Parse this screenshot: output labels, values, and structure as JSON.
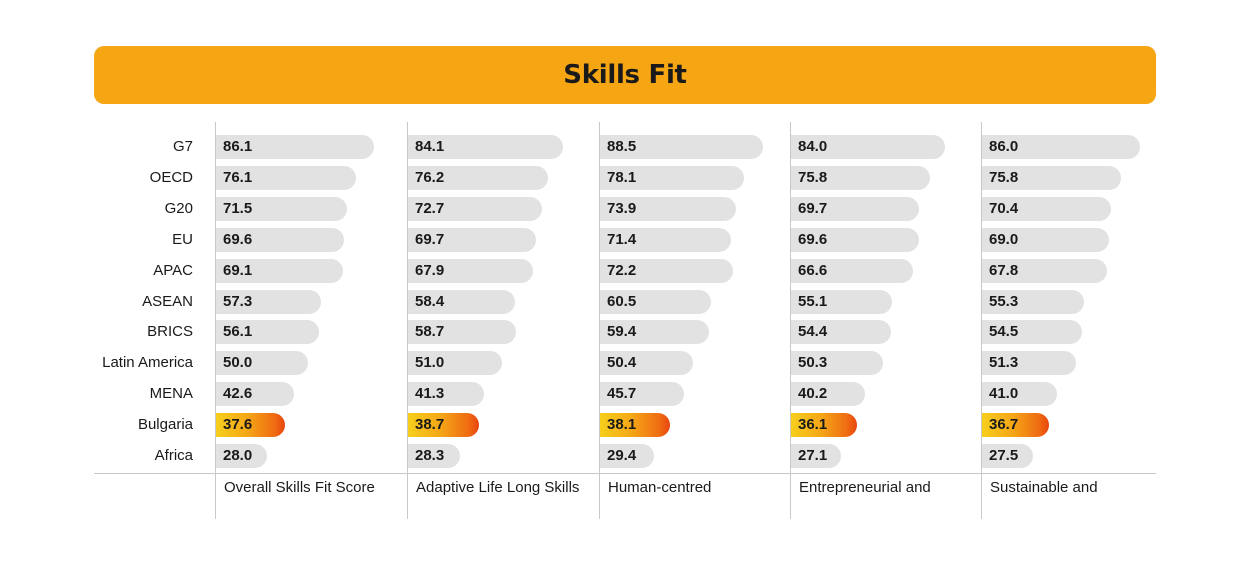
{
  "header": {
    "title": "Skills Fit"
  },
  "colors": {
    "title_bg": "#f6a613",
    "bar": "#e3e2e3",
    "highlight_start": "#f7cf1c",
    "highlight_end": "#e9450f"
  },
  "chart_data": {
    "type": "bar",
    "orientation": "horizontal",
    "title": "Skills Fit",
    "categories": [
      "G7",
      "OECD",
      "G20",
      "EU",
      "APAC",
      "ASEAN",
      "BRICS",
      "Latin America",
      "MENA",
      "Bulgaria",
      "Africa"
    ],
    "highlight": "Bulgaria",
    "xlim": [
      0,
      100
    ],
    "grid": false,
    "series": [
      {
        "name": "Overall Skills Fit Score",
        "values": [
          86.1,
          76.1,
          71.5,
          69.6,
          69.1,
          57.3,
          56.1,
          50.0,
          42.6,
          37.6,
          28.0
        ]
      },
      {
        "name": "Adaptive Life Long Skills",
        "values": [
          84.1,
          76.2,
          72.7,
          69.7,
          67.9,
          58.4,
          58.7,
          51.0,
          41.3,
          38.7,
          28.3
        ]
      },
      {
        "name": "Human-centred",
        "values": [
          88.5,
          78.1,
          73.9,
          71.4,
          72.2,
          60.5,
          59.4,
          50.4,
          45.7,
          38.1,
          29.4
        ]
      },
      {
        "name": "Entrepreneurial and",
        "values": [
          84.0,
          75.8,
          69.7,
          69.6,
          66.6,
          55.1,
          54.4,
          50.3,
          40.2,
          36.1,
          27.1
        ]
      },
      {
        "name": "Sustainable and",
        "values": [
          86.0,
          75.8,
          70.4,
          69.0,
          67.8,
          55.3,
          54.5,
          51.3,
          41.0,
          36.7,
          27.5
        ]
      }
    ]
  }
}
